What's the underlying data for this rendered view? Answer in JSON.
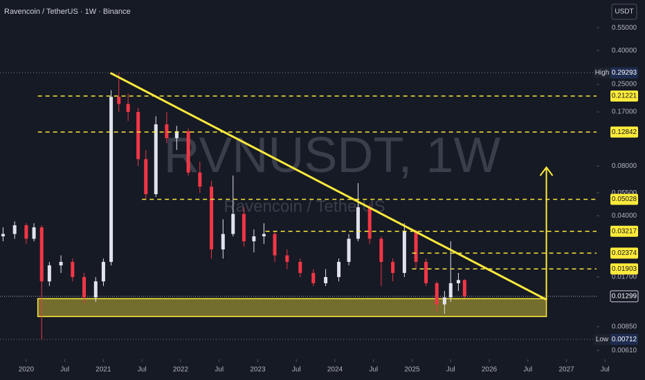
{
  "chart_data": {
    "type": "candlestick",
    "title": "Ravencoin / TetherUS · 1W · Binance",
    "watermark": "RVNUSDT, 1W",
    "watermark_subtitle": "Ravencoin / TetherUS",
    "currency": "USDT",
    "log_scale": true,
    "grid": false,
    "up_color": "#e0e3eb",
    "down_color": "#f23645",
    "level_color": "#ffeb3b",
    "xlim": [
      2019.66,
      2027.39
    ],
    "ylim": [
      0.0054,
      0.81
    ],
    "xticks": [
      {
        "value": 2020,
        "label": "2020"
      },
      {
        "value": 2020.5,
        "label": "Jul"
      },
      {
        "value": 2021,
        "label": "2021"
      },
      {
        "value": 2021.5,
        "label": "Jul"
      },
      {
        "value": 2022,
        "label": "2022"
      },
      {
        "value": 2022.5,
        "label": "Jul"
      },
      {
        "value": 2023,
        "label": "2023"
      },
      {
        "value": 2023.5,
        "label": "Jul"
      },
      {
        "value": 2024,
        "label": "2024"
      },
      {
        "value": 2024.5,
        "label": "Jul"
      },
      {
        "value": 2025,
        "label": "2025"
      },
      {
        "value": 2025.5,
        "label": "Jul"
      },
      {
        "value": 2026,
        "label": "2026"
      },
      {
        "value": 2026.5,
        "label": "Jul"
      },
      {
        "value": 2027,
        "label": "2027"
      },
      {
        "value": 2027.5,
        "label": "Jul"
      }
    ],
    "yticks": [
      {
        "value": 0.55,
        "label": "0.55000"
      },
      {
        "value": 0.4,
        "label": "0.40000"
      },
      {
        "value": 0.25,
        "label": "0.25000"
      },
      {
        "value": 0.17,
        "label": "0.17000"
      },
      {
        "value": 0.08,
        "label": "0.08000"
      },
      {
        "value": 0.055,
        "label": "0.05500"
      },
      {
        "value": 0.04,
        "label": "0.04000"
      },
      {
        "value": 0.017,
        "label": "0.01700"
      },
      {
        "value": 0.0085,
        "label": "0.00850"
      },
      {
        "value": 0.0061,
        "label": "0.00610"
      }
    ],
    "x": [
      2019.7,
      2019.85,
      2020.0,
      2020.1,
      2020.2,
      2020.3,
      2020.45,
      2020.6,
      2020.75,
      2020.9,
      2021.0,
      2021.1,
      2021.2,
      2021.32,
      2021.45,
      2021.55,
      2021.68,
      2021.82,
      2021.95,
      2022.1,
      2022.25,
      2022.4,
      2022.55,
      2022.68,
      2022.82,
      2022.95,
      2023.08,
      2023.22,
      2023.38,
      2023.55,
      2023.72,
      2023.88,
      2024.05,
      2024.18,
      2024.3,
      2024.45,
      2024.6,
      2024.75,
      2024.9,
      2025.05,
      2025.18,
      2025.32,
      2025.42,
      2025.5,
      2025.6,
      2025.68
    ],
    "open": [
      0.03,
      0.031,
      0.035,
      0.029,
      0.034,
      0.016,
      0.02,
      0.021,
      0.017,
      0.0128,
      0.016,
      0.021,
      0.21,
      0.19,
      0.17,
      0.088,
      0.054,
      0.143,
      0.118,
      0.13,
      0.073,
      0.06,
      0.025,
      0.031,
      0.041,
      0.028,
      0.03,
      0.031,
      0.023,
      0.021,
      0.018,
      0.0156,
      0.017,
      0.021,
      0.029,
      0.045,
      0.029,
      0.021,
      0.018,
      0.032,
      0.021,
      0.0156,
      0.0116,
      0.0128,
      0.0156,
      0.0163
    ],
    "high": [
      0.034,
      0.037,
      0.036,
      0.036,
      0.035,
      0.021,
      0.023,
      0.022,
      0.018,
      0.017,
      0.022,
      0.23,
      0.29293,
      0.22,
      0.18,
      0.1,
      0.16,
      0.17,
      0.14,
      0.135,
      0.085,
      0.065,
      0.038,
      0.07,
      0.045,
      0.033,
      0.036,
      0.032,
      0.025,
      0.022,
      0.019,
      0.019,
      0.022,
      0.031,
      0.063,
      0.047,
      0.03,
      0.022,
      0.036,
      0.033,
      0.022,
      0.016,
      0.014,
      0.028,
      0.018,
      0.0165
    ],
    "low": [
      0.028,
      0.029,
      0.027,
      0.028,
      0.00712,
      0.015,
      0.018,
      0.016,
      0.0118,
      0.012,
      0.015,
      0.02,
      0.17,
      0.15,
      0.08,
      0.05,
      0.052,
      0.11,
      0.1,
      0.07,
      0.055,
      0.022,
      0.022,
      0.03,
      0.026,
      0.024,
      0.027,
      0.021,
      0.019,
      0.017,
      0.015,
      0.015,
      0.016,
      0.02,
      0.028,
      0.027,
      0.015,
      0.016,
      0.017,
      0.019,
      0.015,
      0.0105,
      0.0102,
      0.012,
      0.014,
      0.0127
    ],
    "close": [
      0.031,
      0.035,
      0.029,
      0.034,
      0.016,
      0.02,
      0.021,
      0.017,
      0.0128,
      0.016,
      0.021,
      0.21,
      0.19,
      0.17,
      0.088,
      0.054,
      0.143,
      0.118,
      0.13,
      0.073,
      0.06,
      0.025,
      0.031,
      0.041,
      0.028,
      0.03,
      0.031,
      0.023,
      0.021,
      0.018,
      0.0156,
      0.017,
      0.021,
      0.029,
      0.045,
      0.029,
      0.021,
      0.018,
      0.032,
      0.021,
      0.0156,
      0.0116,
      0.0128,
      0.0156,
      0.0163,
      0.01299
    ],
    "levels": [
      0.21221,
      0.12842,
      0.05028,
      0.03217,
      0.02374,
      0.01903
    ],
    "level_start": [
      2020.15,
      2020.15,
      2021.5,
      2023.1,
      2025.0,
      2025.0
    ],
    "high_marker": {
      "label": "High",
      "value": 0.29293
    },
    "low_marker": {
      "label": "Low",
      "value": 0.00712
    },
    "last_price": 0.01299,
    "trendline": {
      "x": [
        2021.09,
        2026.74
      ],
      "y": [
        0.29293,
        0.0124
      ]
    },
    "support_zone": {
      "x": [
        2020.15,
        2026.74
      ],
      "y": [
        0.0098,
        0.01257
      ]
    },
    "target_arrow": {
      "x": [
        2026.74
      ],
      "y": [
        0.0124,
        0.0785
      ]
    }
  }
}
